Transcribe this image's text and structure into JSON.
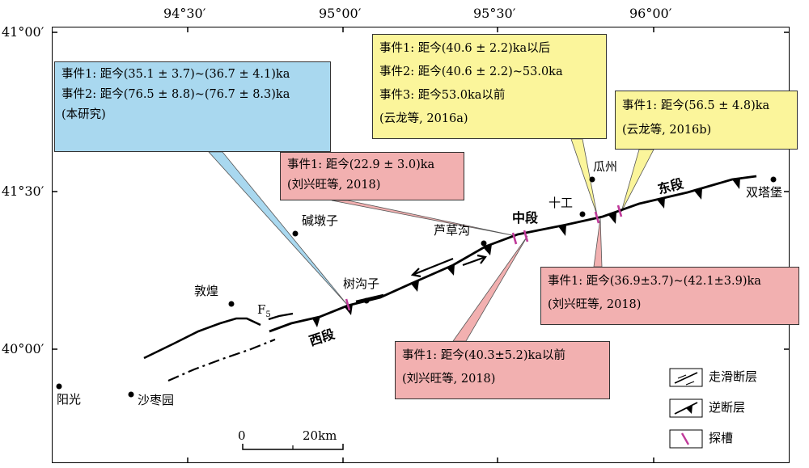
{
  "coords": {
    "lon": [
      "94°30′",
      "95°00′",
      "95°30′",
      "96°00′"
    ],
    "lat": [
      "41°00′",
      "41°30′",
      "40°00′"
    ]
  },
  "places": {
    "yangguan": "阳光",
    "shazaoyuan": "沙枣园",
    "dunhuang": "敦煌",
    "jiandunzi": "碱墩子",
    "shugouzi": "树沟子",
    "lucaogou": "芦草沟",
    "shigong": "十工",
    "guazhou": "瓜州",
    "shuangtabao": "双塔堡"
  },
  "segments": {
    "west": "西段",
    "middle": "中段",
    "east": "东段",
    "f5": "F",
    "f5_sub": "5"
  },
  "boxes": {
    "blue": {
      "lines": [
        "事件1: 距今(35.1 ± 3.7)~(36.7 ± 4.1)ka",
        "事件2: 距今(76.5 ± 8.8)~(76.7 ± 8.3)ka",
        "(本研究)"
      ],
      "color": "#a9d8ef"
    },
    "pink_top": {
      "lines": [
        "事件1: 距今(22.9 ± 3.0)ka",
        "(刘兴旺等, 2018)"
      ],
      "color": "#f2b0b0"
    },
    "yellow_mid": {
      "lines": [
        "事件1: 距今(40.6 ± 2.2)ka以后",
        "事件2: 距今(40.6 ± 2.2)~53.0ka",
        "事件3: 距今53.0ka以前",
        "(云龙等, 2016a)"
      ],
      "color": "#fbf59b"
    },
    "yellow_right": {
      "lines": [
        "事件1: 距今(56.5 ± 4.8)ka",
        "(云龙等, 2016b)"
      ],
      "color": "#fbf59b"
    },
    "pink_right": {
      "lines": [
        "事件1: 距今(36.9±3.7)~(42.1±3.9)ka",
        "(刘兴旺等, 2018)"
      ],
      "color": "#f2b0b0"
    },
    "pink_bottom": {
      "lines": [
        "事件1: 距今(40.3±5.2)ka以前",
        "(刘兴旺等, 2018)"
      ],
      "color": "#f2b0b0"
    }
  },
  "scale": {
    "zero": "0",
    "end": "20km"
  },
  "legend": {
    "strike_slip": "走滑断层",
    "thrust": "逆断层",
    "trench": "探槽"
  },
  "colors": {
    "trench": "#c03a9a"
  }
}
